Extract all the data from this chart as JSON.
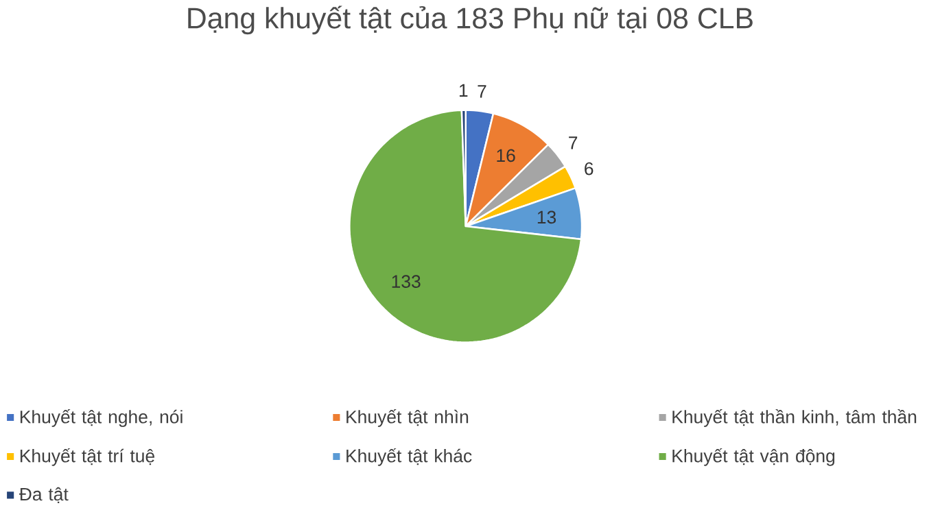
{
  "chart_data": {
    "type": "pie",
    "title": "Dạng khuyết tật của 183 Phụ nữ tại 08 CLB",
    "categories": [
      "Khuyết tật nghe, nói",
      "Khuyết tật nhìn",
      "Khuyết tật thần kinh, tâm thần",
      "Khuyết tật trí tuệ",
      "Khuyết tật khác",
      "Khuyết tật vận động",
      "Đa tật"
    ],
    "values": [
      7,
      16,
      7,
      6,
      13,
      133,
      1
    ],
    "colors": [
      "#4472c4",
      "#ed7d31",
      "#a5a5a5",
      "#ffc000",
      "#5b9bd5",
      "#70ad47",
      "#264478"
    ],
    "data_labels": true,
    "legend": "bottom"
  }
}
